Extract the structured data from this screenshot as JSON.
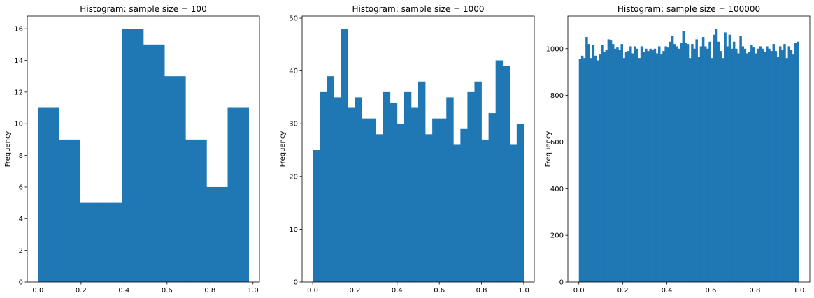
{
  "chart_data": [
    {
      "type": "bar",
      "title": "Histogram: sample size = 100",
      "xlabel": "",
      "ylabel": "Frequency",
      "xlim": [
        -0.05,
        1.03
      ],
      "ylim": [
        0,
        16.8
      ],
      "xticks": [
        0.0,
        0.2,
        0.4,
        0.6,
        0.8,
        1.0
      ],
      "xtick_labels": [
        "0.0",
        "0.2",
        "0.4",
        "0.6",
        "0.8",
        "1.0"
      ],
      "yticks": [
        0,
        2,
        4,
        6,
        8,
        10,
        12,
        14,
        16
      ],
      "ytick_labels": [
        "0",
        "2",
        "4",
        "6",
        "8",
        "10",
        "12",
        "14",
        "16"
      ],
      "bin_range": [
        0.0,
        0.98
      ],
      "values": [
        11,
        9,
        5,
        5,
        16,
        15,
        13,
        9,
        6,
        11
      ],
      "color": "#1f77b4",
      "grid": false
    },
    {
      "type": "bar",
      "title": "Histogram: sample size = 1000",
      "xlabel": "",
      "ylabel": "Frequency",
      "xlim": [
        -0.05,
        1.05
      ],
      "ylim": [
        0,
        50.4
      ],
      "xticks": [
        0.0,
        0.2,
        0.4,
        0.6,
        0.8,
        1.0
      ],
      "xtick_labels": [
        "0.0",
        "0.2",
        "0.4",
        "0.6",
        "0.8",
        "1.0"
      ],
      "yticks": [
        0,
        10,
        20,
        30,
        40,
        50
      ],
      "ytick_labels": [
        "0",
        "10",
        "20",
        "30",
        "40",
        "50"
      ],
      "bin_range": [
        0.0,
        1.0
      ],
      "values": [
        25,
        36,
        39,
        35,
        48,
        33,
        35,
        31,
        31,
        28,
        36,
        34,
        30,
        36,
        33,
        38,
        28,
        31,
        31,
        35,
        26,
        29,
        36,
        38,
        27,
        32,
        42,
        41,
        26,
        30
      ],
      "color": "#1f77b4",
      "grid": false
    },
    {
      "type": "bar",
      "title": "Histogram: sample size = 100000",
      "xlabel": "",
      "ylabel": "Frequency",
      "xlim": [
        -0.05,
        1.05
      ],
      "ylim": [
        0,
        1140
      ],
      "xticks": [
        0.0,
        0.2,
        0.4,
        0.6,
        0.8,
        1.0
      ],
      "xtick_labels": [
        "0.0",
        "0.2",
        "0.4",
        "0.6",
        "0.8",
        "1.0"
      ],
      "yticks": [
        0,
        200,
        400,
        600,
        800,
        1000
      ],
      "ytick_labels": [
        "0",
        "200",
        "400",
        "600",
        "800",
        "1000"
      ],
      "bin_range": [
        0.0,
        1.0
      ],
      "values": [
        955,
        970,
        960,
        1050,
        1020,
        960,
        1015,
        970,
        950,
        975,
        1015,
        985,
        995,
        1040,
        1035,
        1020,
        1000,
        1005,
        995,
        1020,
        960,
        985,
        990,
        1010,
        980,
        1010,
        1000,
        960,
        1010,
        985,
        1000,
        990,
        1000,
        995,
        1000,
        980,
        1010,
        975,
        990,
        1010,
        1005,
        1030,
        1055,
        1020,
        1010,
        1000,
        1025,
        1075,
        1025,
        1020,
        960,
        1020,
        1000,
        1040,
        965,
        1010,
        1050,
        1010,
        1000,
        1030,
        960,
        1060,
        1085,
        1030,
        990,
        960,
        1070,
        1010,
        1060,
        1000,
        1030,
        1000,
        980,
        1055,
        1010,
        1000,
        980,
        985,
        1015,
        1005,
        980,
        1000,
        1010,
        1000,
        985,
        1010,
        1000,
        990,
        1020,
        990,
        965,
        1010,
        995,
        1020,
        960,
        1010,
        995,
        975,
        1025,
        1030
      ],
      "color": "#1f77b4",
      "grid": false
    }
  ]
}
